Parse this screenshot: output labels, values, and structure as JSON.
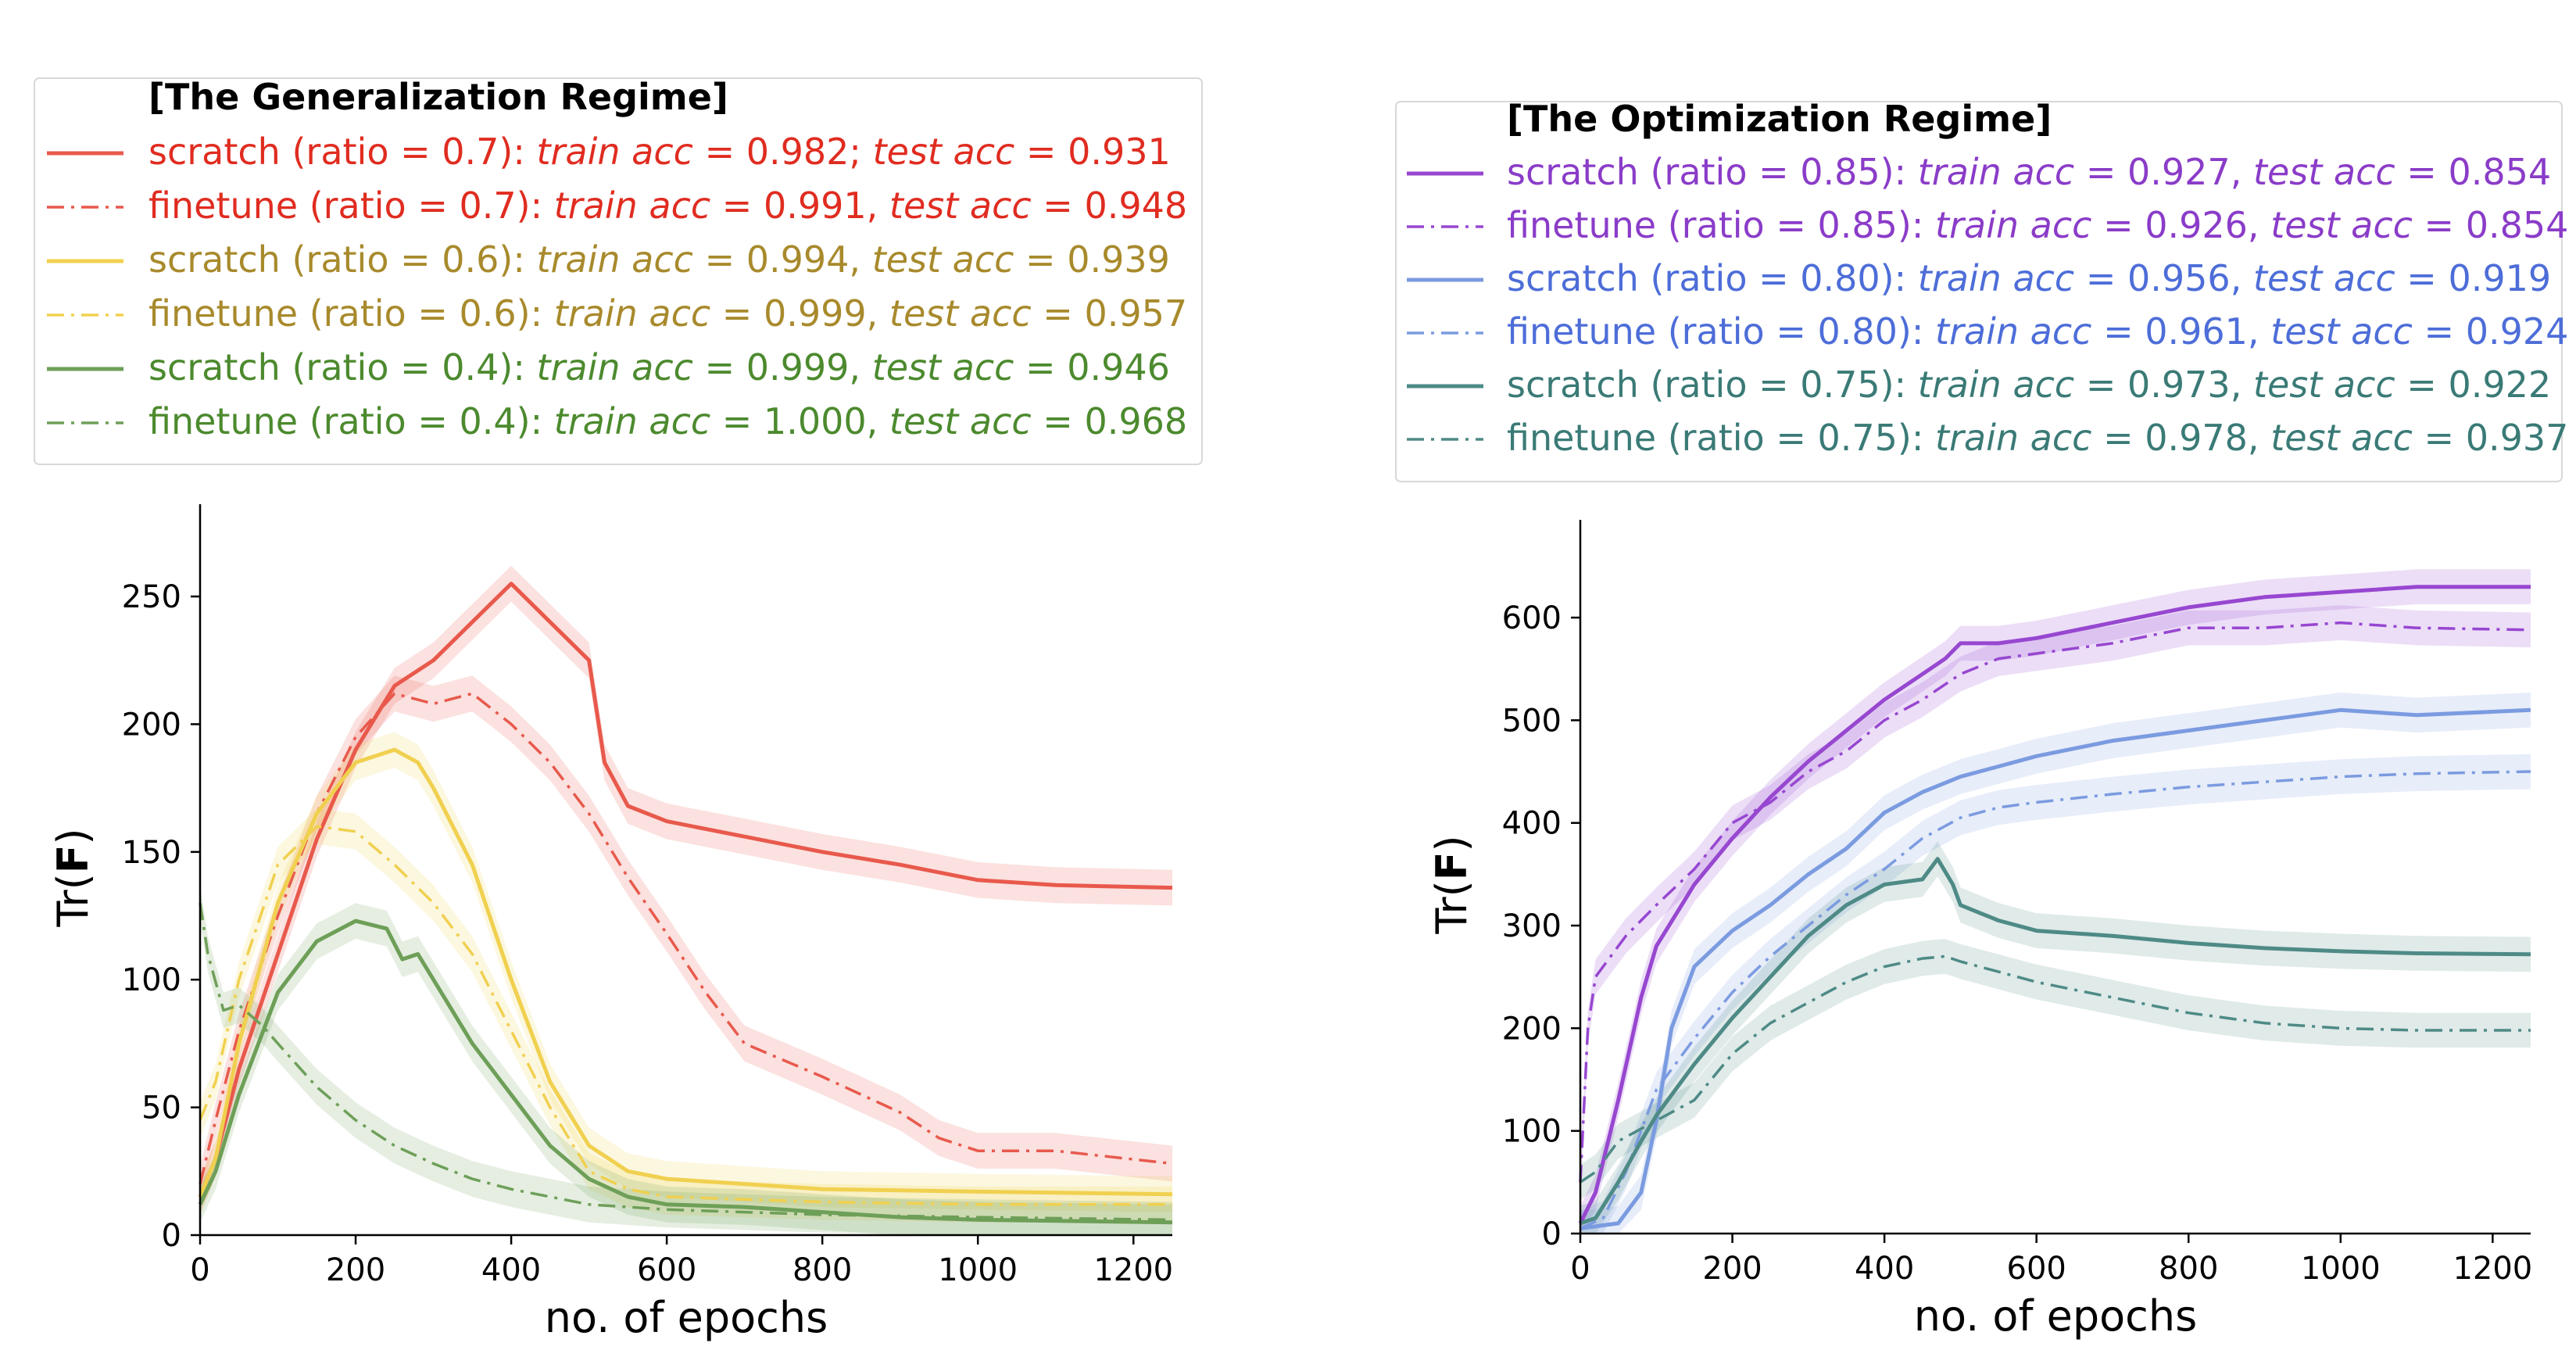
{
  "chart_data": [
    {
      "type": "line",
      "legend_title": "[The Generalization Regime]",
      "legend_placement": "top",
      "xlabel": "no. of epochs",
      "ylabel": "Tr(F)",
      "xlim": [
        0,
        1250
      ],
      "ylim": [
        0,
        280
      ],
      "xticks": [
        0,
        200,
        400,
        600,
        800,
        1000,
        1200
      ],
      "yticks": [
        0,
        50,
        100,
        150,
        200,
        250
      ],
      "grid": false,
      "series": [
        {
          "legend": {
            "prefix": "scratch  (ratio = 0.7): ",
            "m1": "train acc",
            "v1": " = 0.982; ",
            "m2": "test acc",
            "v2": " = 0.931"
          },
          "style": "solid",
          "color": "#e8594c",
          "x": [
            0,
            20,
            50,
            100,
            150,
            200,
            250,
            300,
            350,
            400,
            450,
            500,
            520,
            550,
            600,
            700,
            800,
            900,
            1000,
            1100,
            1250
          ],
          "y": [
            15,
            30,
            65,
            110,
            155,
            190,
            215,
            225,
            240,
            255,
            240,
            225,
            185,
            168,
            162,
            156,
            150,
            145,
            139,
            137,
            136
          ]
        },
        {
          "legend": {
            "prefix": "finetune (ratio = 0.7): ",
            "m1": "train acc",
            "v1": " = 0.991, ",
            "m2": "test acc",
            "v2": " = 0.948"
          },
          "style": "dashdot",
          "color": "#e8594c",
          "x": [
            0,
            20,
            50,
            100,
            150,
            200,
            250,
            300,
            350,
            400,
            450,
            500,
            550,
            600,
            650,
            700,
            800,
            900,
            950,
            1000,
            1100,
            1250
          ],
          "y": [
            20,
            45,
            80,
            125,
            165,
            195,
            212,
            208,
            212,
            200,
            185,
            165,
            140,
            118,
            95,
            75,
            62,
            48,
            38,
            33,
            33,
            28
          ]
        },
        {
          "legend": {
            "prefix": "scratch  (ratio = 0.6): ",
            "m1": "train acc",
            "v1": " = 0.994, ",
            "m2": "test acc",
            "v2": " = 0.939"
          },
          "style": "solid",
          "color": "#f0d04f",
          "x": [
            0,
            20,
            50,
            100,
            150,
            200,
            250,
            280,
            300,
            350,
            400,
            450,
            500,
            550,
            600,
            700,
            800,
            1000,
            1250
          ],
          "y": [
            15,
            30,
            75,
            130,
            165,
            185,
            190,
            185,
            175,
            145,
            100,
            60,
            35,
            25,
            22,
            20,
            18,
            17,
            16
          ]
        },
        {
          "legend": {
            "prefix": "finetune (ratio = 0.6): ",
            "m1": "train acc",
            "v1": " = 0.999, ",
            "m2": "test acc",
            "v2": " = 0.957"
          },
          "style": "dashdot",
          "color": "#f0d04f",
          "x": [
            0,
            20,
            50,
            100,
            150,
            200,
            250,
            300,
            350,
            400,
            450,
            500,
            550,
            600,
            700,
            800,
            1000,
            1250
          ],
          "y": [
            45,
            60,
            100,
            145,
            160,
            158,
            145,
            130,
            110,
            80,
            50,
            25,
            18,
            15,
            14,
            13,
            12,
            12
          ]
        },
        {
          "legend": {
            "prefix": "scratch  (ratio = 0.4): ",
            "m1": "train acc",
            "v1": " = 0.999, ",
            "m2": "test acc",
            "v2": " = 0.946"
          },
          "style": "solid",
          "color": "#6e9f58",
          "x": [
            0,
            20,
            50,
            100,
            150,
            200,
            240,
            260,
            280,
            300,
            350,
            400,
            450,
            500,
            550,
            600,
            700,
            800,
            900,
            1000,
            1250
          ],
          "y": [
            12,
            25,
            55,
            95,
            115,
            123,
            120,
            108,
            110,
            100,
            75,
            55,
            35,
            22,
            15,
            12,
            11,
            9,
            7,
            6,
            5
          ]
        },
        {
          "legend": {
            "prefix": "finetune (ratio = 0.4): ",
            "m1": "train acc",
            "v1": " = 1.000, ",
            "m2": "test acc",
            "v2": " = 0.968"
          },
          "style": "dashdot",
          "color": "#6e9f58",
          "x": [
            0,
            10,
            30,
            50,
            80,
            100,
            150,
            200,
            250,
            300,
            350,
            400,
            450,
            500,
            600,
            700,
            800,
            1000,
            1250
          ],
          "y": [
            130,
            110,
            88,
            90,
            82,
            75,
            58,
            45,
            35,
            28,
            22,
            18,
            15,
            12,
            10,
            9,
            8,
            7,
            6
          ]
        }
      ]
    },
    {
      "type": "line",
      "legend_title": "[The Optimization Regime]",
      "legend_placement": "top",
      "xlabel": "no. of epochs",
      "ylabel": "Tr(F)",
      "xlim": [
        0,
        1250
      ],
      "ylim": [
        0,
        680
      ],
      "xticks": [
        0,
        200,
        400,
        600,
        800,
        1000,
        1200
      ],
      "yticks": [
        0,
        100,
        200,
        300,
        400,
        500,
        600
      ],
      "grid": false,
      "series": [
        {
          "legend": {
            "prefix": "scratch  (ratio = 0.85): ",
            "m1": "train acc",
            "v1": " = 0.927, ",
            "m2": "test acc",
            "v2": " = 0.854"
          },
          "style": "solid",
          "color": "#9747d0",
          "x": [
            0,
            20,
            50,
            80,
            100,
            150,
            200,
            250,
            300,
            350,
            400,
            450,
            480,
            500,
            550,
            600,
            700,
            800,
            900,
            1000,
            1100,
            1250
          ],
          "y": [
            10,
            40,
            130,
            230,
            280,
            340,
            385,
            425,
            460,
            490,
            520,
            545,
            560,
            575,
            575,
            580,
            595,
            610,
            620,
            625,
            630,
            630
          ]
        },
        {
          "legend": {
            "prefix": "finetune (ratio = 0.85): ",
            "m1": "train acc",
            "v1": " = 0.926, ",
            "m2": "test acc",
            "v2": " = 0.854"
          },
          "style": "dashdot",
          "color": "#9747d0",
          "x": [
            0,
            10,
            20,
            40,
            60,
            100,
            150,
            200,
            250,
            300,
            350,
            400,
            450,
            500,
            550,
            600,
            700,
            800,
            900,
            1000,
            1100,
            1250
          ],
          "y": [
            50,
            200,
            250,
            270,
            290,
            320,
            355,
            400,
            420,
            450,
            470,
            500,
            520,
            545,
            560,
            565,
            575,
            590,
            590,
            595,
            590,
            588
          ]
        },
        {
          "legend": {
            "prefix": "scratch  (ratio = 0.80): ",
            "m1": "train acc",
            "v1": " = 0.956, ",
            "m2": "test acc",
            "v2": " = 0.919"
          },
          "style": "solid",
          "color": "#7b9be0",
          "x": [
            0,
            50,
            80,
            100,
            120,
            150,
            200,
            250,
            300,
            350,
            400,
            450,
            500,
            550,
            600,
            700,
            800,
            900,
            1000,
            1100,
            1250
          ],
          "y": [
            5,
            10,
            40,
            110,
            200,
            260,
            295,
            320,
            350,
            375,
            410,
            430,
            445,
            455,
            465,
            480,
            490,
            500,
            510,
            505,
            510
          ]
        },
        {
          "legend": {
            "prefix": "finetune (ratio = 0.80): ",
            "m1": "train acc",
            "v1": " = 0.961, ",
            "m2": "test acc",
            "v2": " = 0.924"
          },
          "style": "dashdot",
          "color": "#7b9be0",
          "x": [
            0,
            30,
            60,
            100,
            150,
            200,
            250,
            300,
            350,
            400,
            450,
            500,
            550,
            600,
            700,
            800,
            900,
            1000,
            1100,
            1250
          ],
          "y": [
            5,
            15,
            60,
            140,
            190,
            235,
            270,
            300,
            330,
            355,
            385,
            405,
            415,
            420,
            428,
            435,
            440,
            445,
            448,
            450
          ]
        },
        {
          "legend": {
            "prefix": "scratch  (ratio = 0.75): ",
            "m1": "train acc",
            "v1": " = 0.973, ",
            "m2": "test acc",
            "v2": " = 0.922"
          },
          "style": "solid",
          "color": "#4e8a86",
          "x": [
            0,
            20,
            50,
            80,
            100,
            150,
            200,
            250,
            300,
            350,
            400,
            450,
            470,
            490,
            500,
            550,
            600,
            700,
            800,
            900,
            1000,
            1100,
            1250
          ],
          "y": [
            10,
            15,
            50,
            90,
            115,
            165,
            210,
            250,
            290,
            320,
            340,
            345,
            365,
            340,
            320,
            305,
            295,
            290,
            283,
            278,
            275,
            273,
            272
          ]
        },
        {
          "legend": {
            "prefix": "finetune (ratio = 0.75): ",
            "m1": "train acc",
            "v1": " = 0.978, ",
            "m2": "test acc",
            "v2": " = 0.937"
          },
          "style": "dashdot",
          "color": "#4e8a86",
          "x": [
            0,
            20,
            50,
            100,
            150,
            200,
            250,
            300,
            350,
            400,
            450,
            480,
            500,
            550,
            600,
            700,
            800,
            900,
            1000,
            1100,
            1250
          ],
          "y": [
            50,
            60,
            90,
            110,
            130,
            175,
            205,
            225,
            245,
            260,
            268,
            270,
            265,
            255,
            245,
            230,
            215,
            205,
            200,
            198,
            198
          ]
        }
      ]
    }
  ]
}
